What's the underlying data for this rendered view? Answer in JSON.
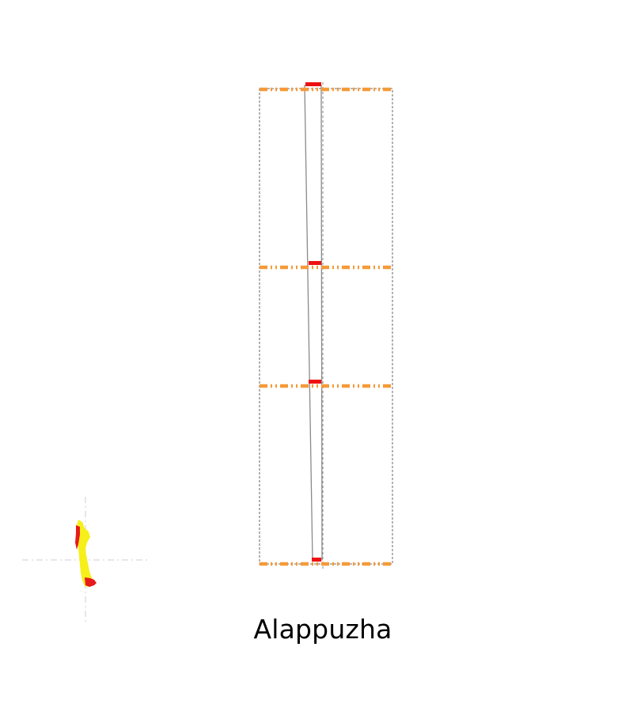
{
  "map": {
    "title": "Alappuzha",
    "colors": {
      "outline": "#8a8a8a",
      "separator": "#f59a38",
      "marker": "#ee1111",
      "crosshair": "#cfcfcf",
      "locator_fill": "#f6ef1a",
      "locator_highlight": "#e61b1b"
    }
  }
}
